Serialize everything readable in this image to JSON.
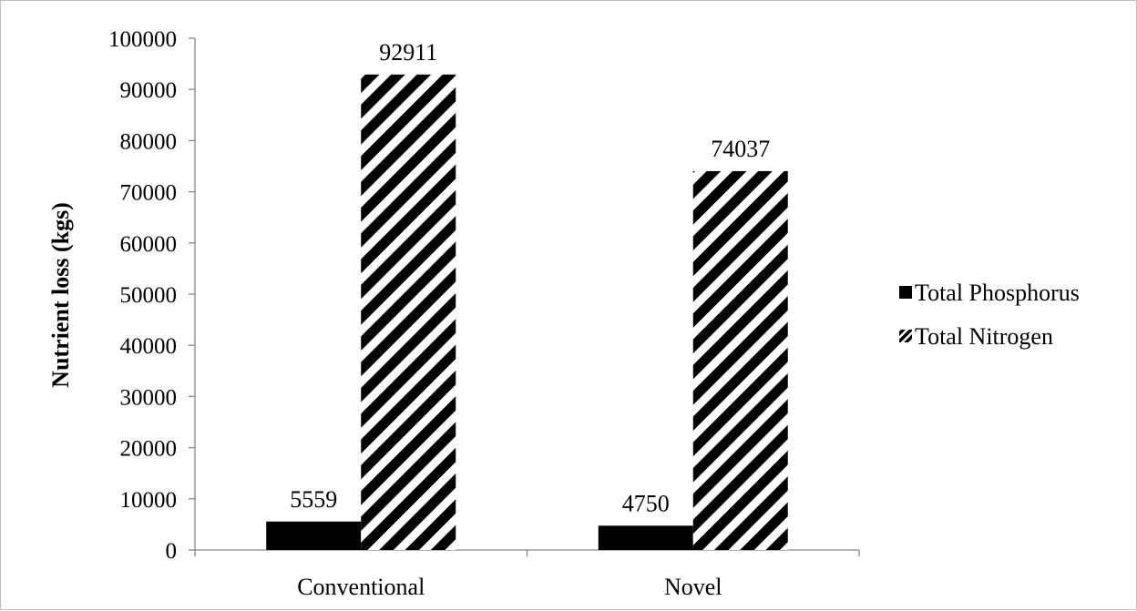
{
  "chart_data": {
    "type": "bar",
    "title": "",
    "xlabel": "",
    "ylabel": "Nutrient loss (kgs)",
    "categories": [
      "Conventional",
      "Novel"
    ],
    "series": [
      {
        "name": "Total Phosphorus",
        "values": [
          5559,
          4750
        ],
        "fill": "solid",
        "color": "#000000"
      },
      {
        "name": "Total Nitrogen",
        "values": [
          92911,
          74037
        ],
        "fill": "diagonal-stripes",
        "color": "#000000"
      }
    ],
    "ylim": [
      0,
      100000
    ],
    "yticks": [
      "0",
      "10000",
      "20000",
      "30000",
      "40000",
      "50000",
      "60000",
      "70000",
      "80000",
      "90000",
      "100000"
    ],
    "data_labels": true,
    "grid": false,
    "legend_position": "right"
  }
}
